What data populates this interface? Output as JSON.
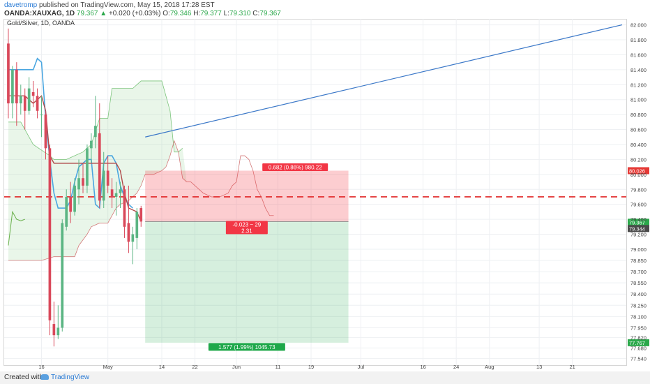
{
  "header": {
    "user": "davetromp",
    "published_text": " published on TradingView.com, May 15, 2018 17:28 EST",
    "symbol": "OANDA:XAUXAG, 1D",
    "last": "79.367",
    "change_arrow": "▲",
    "change": "+0.020 (+0.03%)",
    "o_label": "O:",
    "o": "79.346",
    "h_label": "H:",
    "h": "79.377",
    "l_label": "L:",
    "l": "79.310",
    "c_label": "C:",
    "c": "79.367"
  },
  "chart_title": "Gold/Silver, 1D, OANDA",
  "footer": {
    "created_with": "Created with",
    "brand": "TradingView"
  },
  "colors": {
    "up": "#5bb583",
    "down": "#d9485a",
    "baseline": "#4aa6e0",
    "conversion": "#b04a4a",
    "trendline": "#3b78c8",
    "stop_dash": "#e02424",
    "badge_red": "#f23645",
    "badge_green": "#1ea84a"
  },
  "chart_data": {
    "type": "candlestick",
    "ylim": [
      77.45,
      82.08
    ],
    "y_ticks": [
      "82.000",
      "81.800",
      "81.600",
      "81.400",
      "81.200",
      "81.000",
      "80.800",
      "80.600",
      "80.400",
      "80.200",
      "80.000",
      "79.800",
      "79.600",
      "79.400",
      "79.200",
      "79.000",
      "78.850",
      "78.700",
      "78.550",
      "78.400",
      "78.250",
      "78.100",
      "77.950",
      "77.820",
      "77.680",
      "77.540"
    ],
    "x_ticks": [
      {
        "label": "16",
        "day": -16
      },
      {
        "label": "May",
        "day": 0
      },
      {
        "label": "14",
        "day": 13
      },
      {
        "label": "22",
        "day": 21
      },
      {
        "label": "Jun",
        "day": 31
      },
      {
        "label": "11",
        "day": 41
      },
      {
        "label": "19",
        "day": 49
      },
      {
        "label": "Jul",
        "day": 61
      },
      {
        "label": "16",
        "day": 76
      },
      {
        "label": "24",
        "day": 84
      },
      {
        "label": "Aug",
        "day": 92
      },
      {
        "label": "13",
        "day": 104
      },
      {
        "label": "21",
        "day": 112
      }
    ],
    "x_days": [
      -25,
      125
    ],
    "candles": [
      {
        "d": -24,
        "o": 81.75,
        "h": 81.95,
        "l": 80.75,
        "c": 80.95
      },
      {
        "d": -23,
        "o": 80.95,
        "h": 81.45,
        "l": 80.75,
        "c": 81.4
      },
      {
        "d": -22,
        "o": 81.4,
        "h": 81.5,
        "l": 80.65,
        "c": 80.95
      },
      {
        "d": -21,
        "o": 80.95,
        "h": 81.2,
        "l": 80.8,
        "c": 81.05
      },
      {
        "d": -20,
        "o": 81.05,
        "h": 81.15,
        "l": 80.6,
        "c": 80.85
      },
      {
        "d": -19,
        "o": 80.85,
        "h": 81.3,
        "l": 80.8,
        "c": 81.15
      },
      {
        "d": -18,
        "o": 81.1,
        "h": 81.25,
        "l": 80.9,
        "c": 81.05
      },
      {
        "d": -17,
        "o": 81.05,
        "h": 81.15,
        "l": 80.75,
        "c": 80.85
      },
      {
        "d": -16,
        "o": 80.8,
        "h": 81.05,
        "l": 80.5,
        "c": 80.8
      },
      {
        "d": -15,
        "o": 80.8,
        "h": 80.85,
        "l": 80.2,
        "c": 80.35
      },
      {
        "d": -14,
        "o": 80.35,
        "h": 80.4,
        "l": 77.85,
        "c": 78.05
      },
      {
        "d": -13,
        "o": 78.0,
        "h": 78.3,
        "l": 77.7,
        "c": 77.85
      },
      {
        "d": -12,
        "o": 77.85,
        "h": 78.25,
        "l": 77.8,
        "c": 77.95
      },
      {
        "d": -11,
        "o": 77.95,
        "h": 79.4,
        "l": 77.9,
        "c": 79.35
      },
      {
        "d": -10,
        "o": 79.3,
        "h": 79.8,
        "l": 79.25,
        "c": 79.7
      },
      {
        "d": -9,
        "o": 79.7,
        "h": 79.9,
        "l": 79.35,
        "c": 79.5
      },
      {
        "d": -8,
        "o": 79.5,
        "h": 79.95,
        "l": 79.45,
        "c": 79.85
      },
      {
        "d": -7,
        "o": 79.8,
        "h": 80.2,
        "l": 79.6,
        "c": 79.95
      },
      {
        "d": -6,
        "o": 79.95,
        "h": 80.15,
        "l": 79.75,
        "c": 79.85
      },
      {
        "d": -5,
        "o": 79.85,
        "h": 80.4,
        "l": 79.75,
        "c": 80.35
      },
      {
        "d": -4,
        "o": 80.35,
        "h": 80.55,
        "l": 80.15,
        "c": 80.45
      },
      {
        "d": -3,
        "o": 80.5,
        "h": 81.05,
        "l": 80.35,
        "c": 80.65
      },
      {
        "d": -2,
        "o": 80.55,
        "h": 80.95,
        "l": 79.55,
        "c": 79.65
      },
      {
        "d": -1,
        "o": 79.65,
        "h": 80.3,
        "l": 79.55,
        "c": 80.05
      },
      {
        "d": 0,
        "o": 80.05,
        "h": 80.25,
        "l": 79.75,
        "c": 79.85
      },
      {
        "d": 1,
        "o": 79.8,
        "h": 79.95,
        "l": 79.55,
        "c": 79.7
      },
      {
        "d": 2,
        "o": 79.7,
        "h": 79.9,
        "l": 79.45,
        "c": 79.75
      },
      {
        "d": 3,
        "o": 79.75,
        "h": 79.9,
        "l": 79.55,
        "c": 79.8
      },
      {
        "d": 4,
        "o": 79.8,
        "h": 79.85,
        "l": 79.15,
        "c": 79.3
      },
      {
        "d": 5,
        "o": 79.35,
        "h": 79.85,
        "l": 78.95,
        "c": 79.1
      },
      {
        "d": 6,
        "o": 79.1,
        "h": 79.3,
        "l": 78.8,
        "c": 79.2
      },
      {
        "d": 7,
        "o": 79.15,
        "h": 79.55,
        "l": 79.0,
        "c": 79.5
      },
      {
        "d": 8,
        "o": 79.55,
        "h": 79.58,
        "l": 79.3,
        "c": 79.37
      }
    ],
    "series": [
      {
        "name": "conversion",
        "points": [
          [
            -24,
            81.05
          ],
          [
            -20,
            81.05
          ],
          [
            -18,
            80.95
          ],
          [
            -16,
            81.05
          ],
          [
            -15,
            80.85
          ],
          [
            -14,
            80.25
          ],
          [
            -13,
            80.15
          ],
          [
            -7,
            80.15
          ],
          [
            -4,
            80.15
          ],
          [
            -3,
            80.15
          ],
          [
            2,
            80.15
          ],
          [
            3,
            80.05
          ],
          [
            4,
            79.75
          ],
          [
            5,
            79.55
          ],
          [
            7,
            79.5
          ],
          [
            8,
            79.37
          ]
        ]
      },
      {
        "name": "base",
        "points": [
          [
            -24,
            81.4
          ],
          [
            -18,
            81.4
          ],
          [
            -17,
            81.55
          ],
          [
            -16,
            81.5
          ],
          [
            -15,
            80.75
          ],
          [
            -14,
            80.2
          ],
          [
            -13,
            79.75
          ],
          [
            -12,
            79.55
          ],
          [
            -10,
            79.55
          ],
          [
            -9,
            79.65
          ],
          [
            -8,
            79.9
          ],
          [
            -7,
            80.1
          ],
          [
            -6,
            80.15
          ],
          [
            -5,
            80.2
          ],
          [
            -4,
            80.2
          ],
          [
            -3,
            79.6
          ],
          [
            -2,
            79.55
          ],
          [
            -1,
            80.15
          ],
          [
            0,
            80.25
          ],
          [
            1,
            80.25
          ],
          [
            2,
            80.15
          ],
          [
            3,
            79.85
          ],
          [
            4,
            79.7
          ],
          [
            5,
            79.6
          ],
          [
            6,
            79.55
          ]
        ]
      },
      {
        "name": "lagging",
        "points": [
          [
            -24,
            79.05
          ],
          [
            -23,
            79.5
          ],
          [
            -22,
            79.4
          ],
          [
            -21,
            79.38
          ],
          [
            -20,
            79.4
          ]
        ]
      },
      {
        "name": "cloud_top",
        "points": [
          [
            -24,
            80.7
          ],
          [
            -21,
            80.7
          ],
          [
            -18,
            80.4
          ],
          [
            -14,
            80.25
          ],
          [
            -13,
            80.2
          ],
          [
            -10,
            80.2
          ],
          [
            -8,
            80.25
          ],
          [
            -6,
            80.3
          ],
          [
            -4,
            80.4
          ],
          [
            -2,
            80.75
          ],
          [
            0,
            80.75
          ],
          [
            1,
            81.15
          ],
          [
            2,
            81.15
          ],
          [
            3,
            81.15
          ],
          [
            5,
            81.15
          ],
          [
            6,
            81.15
          ],
          [
            8,
            81.25
          ],
          [
            9,
            81.25
          ],
          [
            11,
            81.25
          ],
          [
            13,
            81.25
          ],
          [
            14,
            81.05
          ],
          [
            15,
            80.85
          ],
          [
            16,
            80.3
          ],
          [
            17,
            80.3
          ],
          [
            18,
            80.35
          ]
        ]
      },
      {
        "name": "cloud_bottom",
        "points": [
          [
            -24,
            78.85
          ],
          [
            -16,
            78.85
          ],
          [
            -13,
            78.9
          ],
          [
            -12,
            78.9
          ],
          [
            -8,
            78.9
          ],
          [
            -7,
            79.05
          ],
          [
            -5,
            79.2
          ],
          [
            -4,
            79.3
          ],
          [
            -2,
            79.35
          ],
          [
            0,
            79.35
          ],
          [
            2,
            79.55
          ],
          [
            3,
            79.6
          ],
          [
            5,
            79.65
          ],
          [
            7,
            79.75
          ],
          [
            8,
            79.85
          ],
          [
            9,
            80.0
          ],
          [
            10,
            80.0
          ],
          [
            11,
            80.0
          ],
          [
            13,
            80.05
          ],
          [
            14,
            80.1
          ],
          [
            15,
            80.25
          ],
          [
            16,
            80.45
          ],
          [
            17,
            80.3
          ],
          [
            18,
            79.95
          ],
          [
            19,
            79.9
          ],
          [
            20,
            79.9
          ],
          [
            21,
            79.85
          ],
          [
            23,
            79.75
          ],
          [
            25,
            79.7
          ],
          [
            27,
            79.7
          ],
          [
            29,
            79.75
          ],
          [
            30,
            79.85
          ],
          [
            31,
            79.9
          ],
          [
            32,
            80.25
          ],
          [
            33,
            80.25
          ],
          [
            34,
            80.2
          ],
          [
            35,
            80.05
          ],
          [
            36,
            79.8
          ],
          [
            37,
            79.7
          ],
          [
            38,
            79.55
          ],
          [
            39,
            79.45
          ],
          [
            40,
            79.45
          ]
        ]
      }
    ],
    "trendline": {
      "from": [
        9,
        80.5
      ],
      "to": [
        124,
        82.0
      ]
    },
    "stop_line": 79.7,
    "position": {
      "start": 9,
      "end": 58,
      "entry": 79.37,
      "stop": 80.05,
      "target": 77.75
    },
    "labels": {
      "stop_badge": "0.682 (0.86%) 980.22",
      "entry_badge_1": "-0.023 ~ 29",
      "entry_badge_2": "2.31",
      "target_badge": "1.577 (1.99%) 1045.73",
      "price_tag_red": "80.026",
      "price_tag_dark": "79.344",
      "price_tag_green_top": "79.367",
      "price_tag_green_bottom": "77.767"
    }
  }
}
